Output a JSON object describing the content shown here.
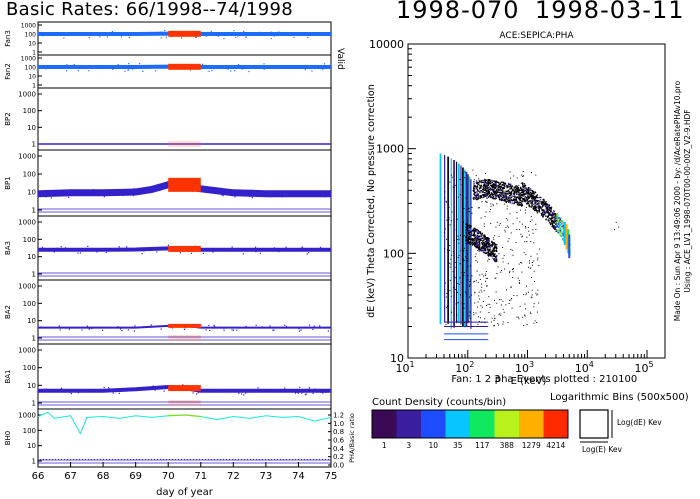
{
  "header": {
    "title": "Basic Rates: 66/1998--74/1998",
    "day_of_year": "1998-070",
    "date": "1998-03-11"
  },
  "left_panel": {
    "xlabel": "day of year",
    "x_ticks": [
      "66",
      "67",
      "68",
      "69",
      "70",
      "71",
      "72",
      "73",
      "74",
      "75"
    ],
    "valid_label": "Valid",
    "right_axis_label": "PHA/Basic ratio",
    "right_axis_ticks": [
      "1.2",
      "1.0",
      "0.8",
      "0.6",
      "0.4",
      "0.2",
      "0.0"
    ],
    "highlight_color": "#ff3300",
    "panels": [
      {
        "label": "Fan3",
        "ticks": [
          "1000",
          "100",
          "10",
          "1"
        ],
        "color": "#1e6cff"
      },
      {
        "label": "Fan2",
        "ticks": [
          "1000",
          "100",
          "10",
          "1"
        ],
        "color": "#1e6cff"
      },
      {
        "label": "BP2",
        "ticks": [
          "1000",
          "100",
          "10",
          "1"
        ],
        "color": "#3322cc"
      },
      {
        "label": "BP1",
        "ticks": [
          "1000",
          "100",
          "10",
          "1"
        ],
        "color": "#3322cc"
      },
      {
        "label": "BA3",
        "ticks": [
          "1000",
          "100",
          "10",
          "1"
        ],
        "color": "#3322cc"
      },
      {
        "label": "BA2",
        "ticks": [
          "1000",
          "100",
          "10",
          "1"
        ],
        "color": "#3322cc"
      },
      {
        "label": "BA1",
        "ticks": [
          "1000",
          "100",
          "10",
          "1"
        ],
        "color": "#3322cc"
      },
      {
        "label": "BH0",
        "ticks": [
          "1000",
          "100",
          "10",
          "1"
        ],
        "color": "#3322cc"
      }
    ]
  },
  "pha_panel": {
    "title": "ACE:SEPICA:PHA",
    "xlabel": "E (keV)",
    "ylabel": "dE (keV) Theta Corrected, No pressure correction",
    "fan_label": "Fan: 1 2 3",
    "events_label": "pha Events plotted : 210100",
    "side_note_1": "Made On : Sun Apr  9 13:49:06 2000 - by: /d/AceRatePHAv10.pro",
    "side_note_2": "Using : ACE_LV1_1998-070T00-00-00Z_V2-9.HDF"
  },
  "legend": {
    "title": "Count Density (counts/bin)",
    "bins_title": "Logarithmic Bins (500x500)",
    "bin_y_label": "Log(dE) Kev",
    "bin_x_label": "Log(E) Kev",
    "levels": [
      {
        "label": "1",
        "color": "#3a0a55"
      },
      {
        "label": "3",
        "color": "#3a1ea0"
      },
      {
        "label": "10",
        "color": "#1e4cff"
      },
      {
        "label": "35",
        "color": "#08c4ff"
      },
      {
        "label": "117",
        "color": "#10e860"
      },
      {
        "label": "388",
        "color": "#b8f21c"
      },
      {
        "label": "1279",
        "color": "#ffb000"
      },
      {
        "label": "4214",
        "color": "#ff2a00"
      }
    ]
  },
  "chart_data": [
    {
      "type": "line",
      "title": "Basic Rates: 66/1998--74/1998",
      "xlabel": "day of year",
      "xlim": [
        66,
        75
      ],
      "ylim": [
        1,
        1000
      ],
      "yscale": "log",
      "highlight_interval": [
        70,
        71
      ],
      "series": [
        {
          "name": "Fan3",
          "x": [
            66,
            67,
            68,
            69,
            70,
            70.5,
            71,
            72,
            73,
            74,
            75
          ],
          "values": [
            100,
            100,
            100,
            100,
            110,
            105,
            100,
            100,
            100,
            100,
            100
          ]
        },
        {
          "name": "Fan2",
          "x": [
            66,
            67,
            68,
            69,
            70,
            70.5,
            71,
            72,
            73,
            74,
            75
          ],
          "values": [
            100,
            100,
            100,
            100,
            110,
            105,
            100,
            100,
            100,
            100,
            100
          ]
        },
        {
          "name": "BP2",
          "x": [
            66,
            67,
            68,
            69,
            70,
            70.5,
            71,
            72,
            73,
            74,
            75
          ],
          "values": [
            1,
            1,
            1,
            1,
            1,
            1,
            1,
            1,
            1,
            1,
            1
          ]
        },
        {
          "name": "BP1",
          "x": [
            66,
            67,
            68,
            69,
            69.5,
            70,
            70.5,
            71,
            72,
            73,
            74,
            75
          ],
          "values": [
            8,
            9,
            9,
            10,
            14,
            25,
            20,
            15,
            9,
            8,
            8,
            8
          ]
        },
        {
          "name": "BA3",
          "x": [
            66,
            67,
            68,
            69,
            70,
            70.5,
            71,
            72,
            73,
            74,
            75
          ],
          "values": [
            25,
            25,
            25,
            26,
            30,
            28,
            25,
            25,
            25,
            25,
            25
          ]
        },
        {
          "name": "BA2",
          "x": [
            66,
            67,
            68,
            69,
            70,
            70.5,
            71,
            72,
            73,
            74,
            75
          ],
          "values": [
            4,
            4,
            4,
            4,
            5,
            5,
            4,
            4,
            4,
            4,
            4
          ]
        },
        {
          "name": "BA1",
          "x": [
            66,
            67,
            68,
            69,
            70,
            70.5,
            71,
            72,
            73,
            74,
            75
          ],
          "values": [
            5,
            5,
            5,
            6,
            8,
            7,
            5,
            5,
            5,
            5,
            5
          ]
        },
        {
          "name": "BH0",
          "x": [
            66,
            66.3,
            66.5,
            67,
            67.3,
            67.5,
            68,
            68.5,
            69,
            69.5,
            70,
            70.5,
            71,
            71.5,
            72,
            72.5,
            73,
            73.5,
            74,
            74.5,
            75
          ],
          "values": [
            800,
            1500,
            600,
            900,
            60,
            700,
            800,
            600,
            900,
            700,
            900,
            1000,
            800,
            500,
            800,
            600,
            900,
            700,
            800,
            400,
            700
          ]
        }
      ]
    },
    {
      "type": "scatter",
      "title": "ACE:SEPICA:PHA",
      "xlabel": "E (keV)",
      "ylabel": "dE (keV) Theta Corrected, No pressure correction",
      "xscale": "log",
      "yscale": "log",
      "xlim": [
        10,
        200000
      ],
      "ylim": [
        10,
        10000
      ],
      "x_ticks": [
        "10^1",
        "10^2",
        "10^3",
        "10^4",
        "10^5"
      ],
      "y_ticks": [
        "10000",
        "1000",
        "100",
        "10"
      ],
      "tracks": [
        {
          "x": [
            800,
            1200,
            2000,
            3000,
            4000,
            5000
          ],
          "y": [
            400,
            330,
            260,
            200,
            160,
            120
          ]
        },
        {
          "x": [
            120,
            200,
            300,
            500,
            800
          ],
          "y": [
            400,
            420,
            410,
            380,
            350
          ]
        },
        {
          "x": [
            90,
            140,
            200,
            300
          ],
          "y": [
            160,
            140,
            120,
            100
          ]
        }
      ]
    }
  ]
}
